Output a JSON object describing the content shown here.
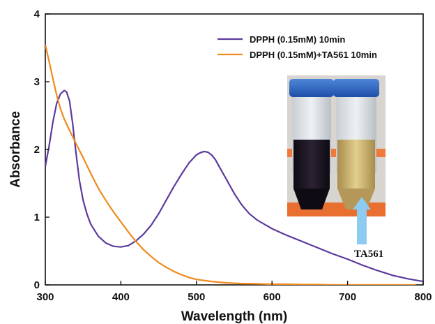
{
  "chart_data": {
    "type": "line",
    "title": "",
    "xlabel": "Wavelength (nm)",
    "ylabel": "Absorbance",
    "xlim": [
      300,
      800
    ],
    "ylim": [
      0,
      4
    ],
    "x_ticks": [
      "300",
      "400",
      "500",
      "600",
      "700",
      "800"
    ],
    "y_ticks": [
      "0",
      "1",
      "2",
      "3",
      "4"
    ],
    "grid": false,
    "legend_position": "top-right",
    "colors": {
      "dpph": "#5b3a9e",
      "dpph_ta561": "#f08a1c"
    },
    "series": [
      {
        "name": "DPPH (0.15mM) 10min",
        "x": [
          300,
          305,
          310,
          315,
          320,
          325,
          328,
          332,
          336,
          340,
          345,
          350,
          355,
          360,
          370,
          380,
          390,
          400,
          410,
          420,
          430,
          440,
          450,
          460,
          470,
          480,
          490,
          500,
          505,
          510,
          515,
          520,
          525,
          530,
          540,
          550,
          560,
          570,
          580,
          600,
          620,
          640,
          660,
          680,
          700,
          720,
          740,
          760,
          780,
          800
        ],
        "y": [
          1.75,
          2.05,
          2.4,
          2.68,
          2.82,
          2.87,
          2.85,
          2.72,
          2.4,
          2.0,
          1.55,
          1.25,
          1.05,
          0.9,
          0.72,
          0.62,
          0.57,
          0.56,
          0.58,
          0.65,
          0.75,
          0.88,
          1.05,
          1.25,
          1.45,
          1.63,
          1.8,
          1.92,
          1.95,
          1.97,
          1.96,
          1.92,
          1.85,
          1.75,
          1.55,
          1.35,
          1.18,
          1.05,
          0.96,
          0.83,
          0.73,
          0.64,
          0.55,
          0.46,
          0.38,
          0.29,
          0.21,
          0.14,
          0.09,
          0.05
        ]
      },
      {
        "name": "DPPH (0.15mM)+TA561 10min",
        "x": [
          300,
          305,
          310,
          315,
          320,
          325,
          330,
          340,
          350,
          360,
          370,
          380,
          390,
          400,
          410,
          420,
          430,
          440,
          450,
          460,
          470,
          480,
          490,
          500,
          520,
          540,
          560,
          580,
          600,
          620,
          640,
          660,
          680,
          700,
          720,
          740,
          760,
          780,
          790
        ],
        "y": [
          3.55,
          3.3,
          3.05,
          2.8,
          2.6,
          2.45,
          2.33,
          2.1,
          1.88,
          1.65,
          1.43,
          1.25,
          1.08,
          0.93,
          0.78,
          0.64,
          0.52,
          0.42,
          0.33,
          0.26,
          0.2,
          0.15,
          0.11,
          0.08,
          0.05,
          0.03,
          0.02,
          0.015,
          0.01,
          0.01,
          0.005,
          0.005,
          0.0,
          0.0,
          0.0,
          0.0,
          0.0,
          0.0,
          0.0
        ]
      }
    ],
    "inset": {
      "description_label": "TA561",
      "photo": "two capped test tubes: left with dark purple solution, right with pale yellow solution, in orange rack; blue arrow points to right tube"
    }
  }
}
